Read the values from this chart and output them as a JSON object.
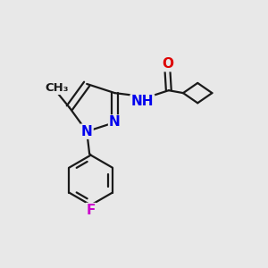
{
  "background_color": "#e8e8e8",
  "bond_color": "#1a1a1a",
  "bond_width": 1.6,
  "atom_colors": {
    "N": "#0000ee",
    "O": "#dd0000",
    "F": "#cc00cc",
    "C": "#1a1a1a"
  },
  "font_size_atom": 11,
  "font_size_methyl": 9.5
}
